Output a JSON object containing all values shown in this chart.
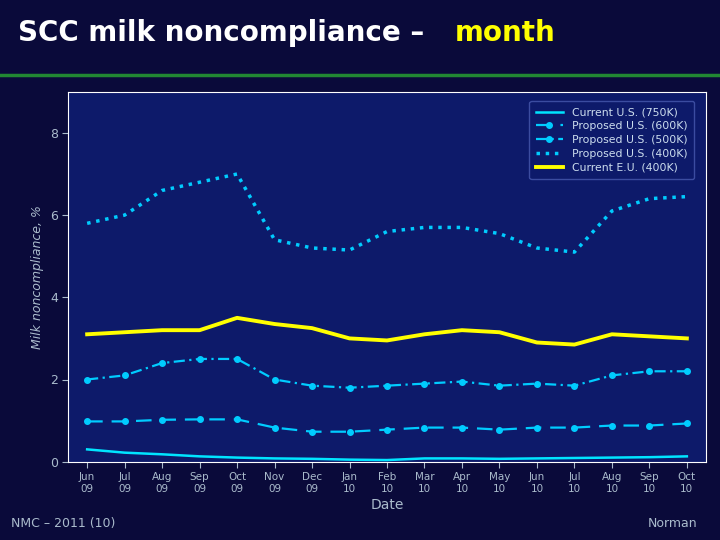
{
  "title_white": "SCC milk noncompliance – ",
  "title_yellow": "month",
  "xlabel": "Date",
  "ylabel": "Milk noncompliance, %",
  "fig_bg_color": "#0a0a3a",
  "title_bg_color": "#050510",
  "plot_bg_color": "#0d1a6a",
  "ylim": [
    0,
    9
  ],
  "yticks": [
    0,
    2,
    4,
    6,
    8
  ],
  "dates": [
    "Jun\n09",
    "Jul\n09",
    "Aug\n09",
    "Sep\n09",
    "Oct\n09",
    "Nov\n09",
    "Dec\n09",
    "Jan\n10",
    "Feb\n10",
    "Mar\n10",
    "Apr\n10",
    "May\n10",
    "Jun\n10",
    "Jul\n10",
    "Aug\n10",
    "Sep\n10",
    "Oct\n10"
  ],
  "series_names": [
    "Current U.S. (750K)",
    "Proposed U.S. (600K)",
    "Proposed U.S. (500K)",
    "Proposed U.S. (400K)",
    "Current E.U. (400K)"
  ],
  "series_values": {
    "Current U.S. (750K)": [
      0.3,
      0.22,
      0.18,
      0.13,
      0.1,
      0.08,
      0.07,
      0.05,
      0.04,
      0.08,
      0.08,
      0.07,
      0.08,
      0.09,
      0.1,
      0.11,
      0.13
    ],
    "Proposed U.S. (600K)": [
      0.98,
      0.98,
      1.02,
      1.03,
      1.03,
      0.83,
      0.73,
      0.73,
      0.78,
      0.83,
      0.83,
      0.78,
      0.83,
      0.83,
      0.88,
      0.88,
      0.93
    ],
    "Proposed U.S. (500K)": [
      2.0,
      2.1,
      2.4,
      2.5,
      2.5,
      2.0,
      1.85,
      1.8,
      1.85,
      1.9,
      1.95,
      1.85,
      1.9,
      1.85,
      2.1,
      2.2,
      2.2
    ],
    "Proposed U.S. (400K)": [
      5.8,
      6.0,
      6.6,
      6.8,
      7.0,
      5.4,
      5.2,
      5.15,
      5.6,
      5.7,
      5.7,
      5.55,
      5.2,
      5.1,
      6.1,
      6.4,
      6.45
    ],
    "Current E.U. (400K)": [
      3.1,
      3.15,
      3.2,
      3.2,
      3.5,
      3.35,
      3.25,
      3.0,
      2.95,
      3.1,
      3.2,
      3.15,
      2.9,
      2.85,
      3.1,
      3.05,
      3.0
    ]
  },
  "colors": {
    "Current U.S. (750K)": "#00e5ff",
    "Proposed U.S. (600K)": "#00ccff",
    "Proposed U.S. (500K)": "#00ccff",
    "Proposed U.S. (400K)": "#00ccff",
    "Current E.U. (400K)": "#ffff00"
  },
  "legend_text_color": "#ccddee",
  "axis_text_color": "#aabbcc",
  "tick_color": "#aabbcc",
  "footer_left": "NMC – 2011 (10)",
  "footer_right": "Norman",
  "green_line_color": "#228833",
  "spine_color": "#ffffff"
}
